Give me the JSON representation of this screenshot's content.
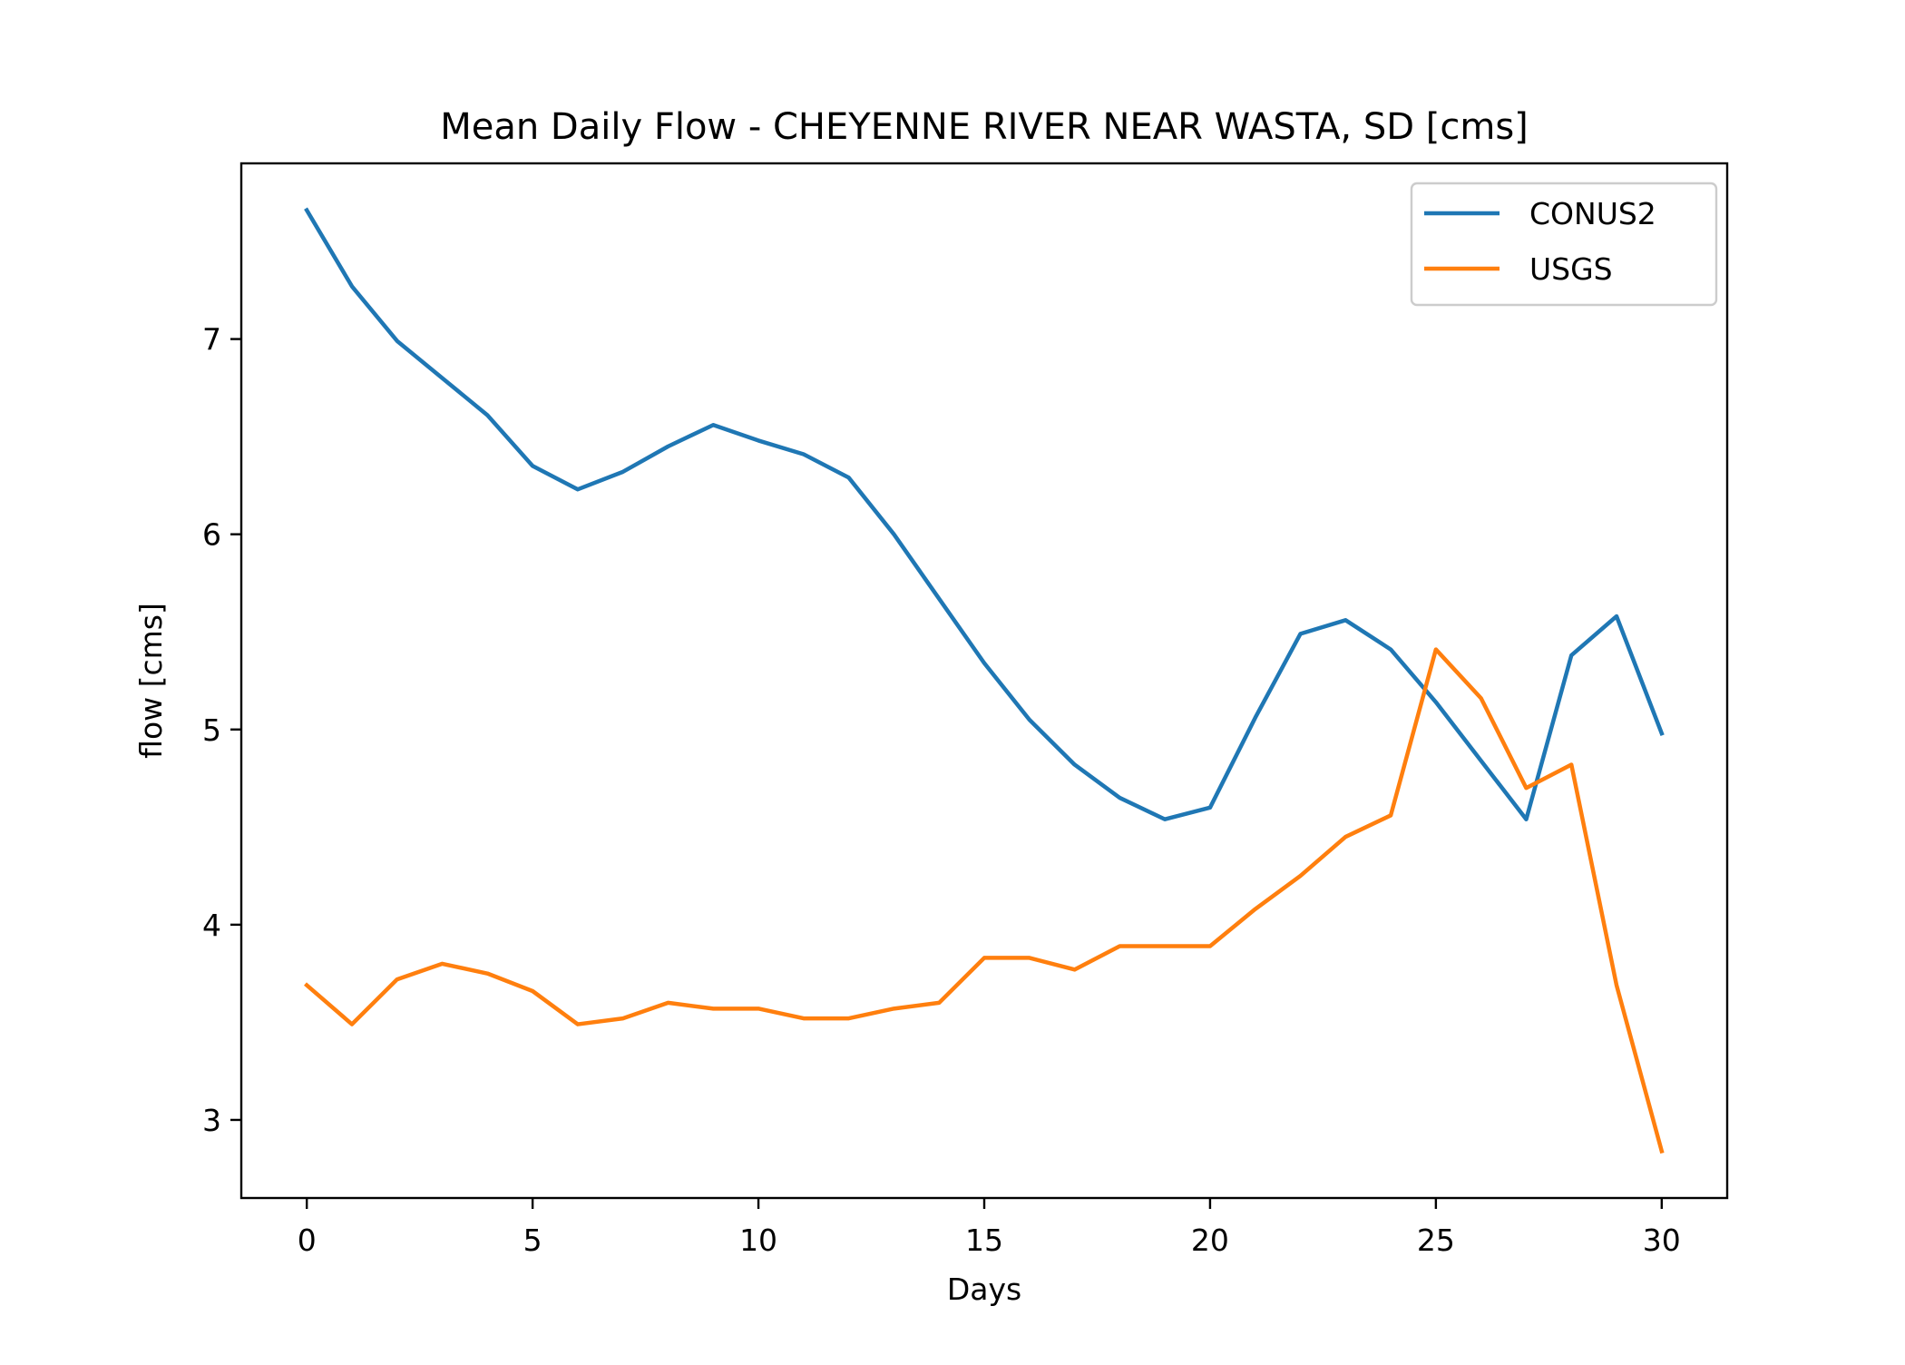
{
  "chart_data": {
    "type": "line",
    "title": "Mean Daily Flow - CHEYENNE RIVER NEAR WASTA, SD [cms]",
    "xlabel": "Days",
    "ylabel": "flow [cms]",
    "xlim": [
      -1.45,
      31.45
    ],
    "ylim": [
      2.6,
      7.9
    ],
    "xticks": [
      0,
      5,
      10,
      15,
      20,
      25,
      30
    ],
    "yticks": [
      3,
      4,
      5,
      6,
      7
    ],
    "grid": false,
    "legend_position": "upper right",
    "x": [
      0,
      1,
      2,
      3,
      4,
      5,
      6,
      7,
      8,
      9,
      10,
      11,
      12,
      13,
      14,
      15,
      16,
      17,
      18,
      19,
      20,
      21,
      22,
      23,
      24,
      25,
      26,
      27,
      28,
      29,
      30
    ],
    "series": [
      {
        "name": "CONUS2",
        "color": "#1f77b4",
        "values": [
          7.66,
          7.27,
          6.99,
          6.8,
          6.61,
          6.35,
          6.23,
          6.32,
          6.45,
          6.56,
          6.48,
          6.41,
          6.29,
          6.0,
          5.67,
          5.34,
          5.05,
          4.82,
          4.65,
          4.54,
          4.6,
          5.06,
          5.49,
          5.56,
          5.41,
          5.14,
          4.84,
          4.54,
          5.38,
          5.58,
          4.98
        ]
      },
      {
        "name": "USGS",
        "color": "#ff7f0e",
        "values": [
          3.69,
          3.49,
          3.72,
          3.8,
          3.75,
          3.66,
          3.49,
          3.52,
          3.6,
          3.57,
          3.57,
          3.52,
          3.52,
          3.57,
          3.6,
          3.83,
          3.83,
          3.77,
          3.89,
          3.89,
          3.89,
          4.08,
          4.25,
          4.45,
          4.56,
          5.41,
          5.16,
          4.7,
          4.82,
          3.69,
          2.84
        ]
      }
    ]
  }
}
